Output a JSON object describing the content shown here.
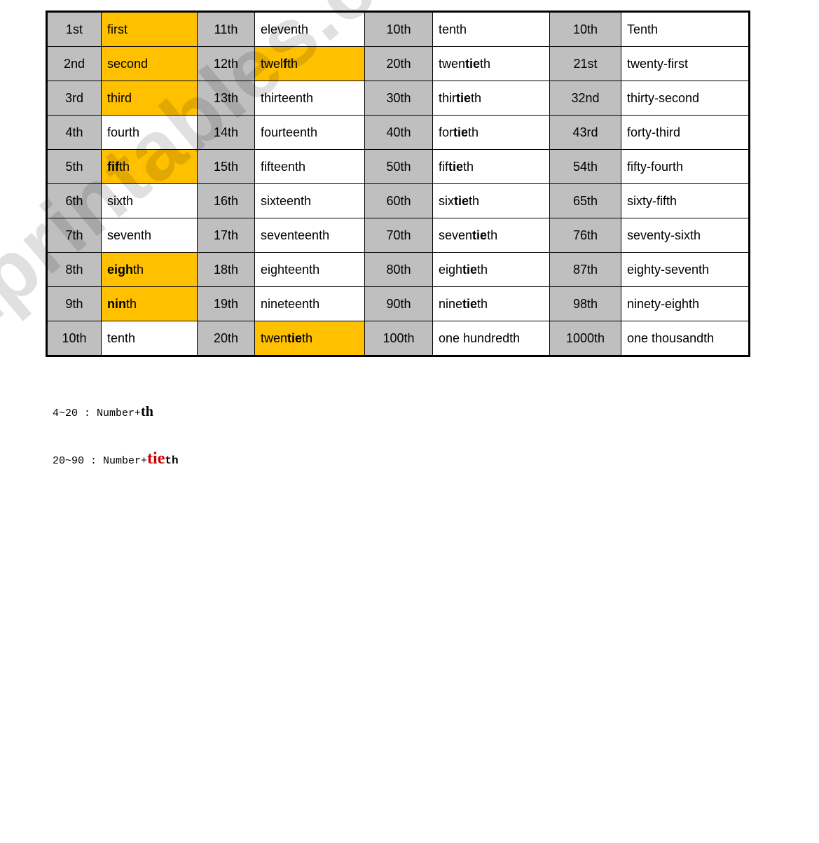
{
  "rows": [
    {
      "n1": "1st",
      "w1": "first",
      "y1": true,
      "b1": false,
      "n2": "11th",
      "w2": "eleventh",
      "y2": false,
      "b2": false,
      "n3": "10th",
      "w3": "tenth",
      "tie3": false,
      "n4": "10th",
      "w4": "Tenth"
    },
    {
      "n1": "2nd",
      "w1": "second",
      "y1": true,
      "b1": false,
      "n2": "12th",
      "w2_pre": "twel",
      "w2_bold": "f",
      "w2_post": "th",
      "y2": true,
      "b2": true,
      "n3": "20th",
      "w3_pre": "twen",
      "w3_tie": "tie",
      "w3_post": "th",
      "tie3": true,
      "n4": "21st",
      "w4": "twenty-first"
    },
    {
      "n1": "3rd",
      "w1": "third",
      "y1": true,
      "b1": false,
      "n2": "13th",
      "w2": "thirteenth",
      "y2": false,
      "b2": false,
      "n3": "30th",
      "w3_pre": "thir",
      "w3_tie": "tie",
      "w3_post": "th",
      "tie3": true,
      "n4": "32nd",
      "w4": "thirty-second"
    },
    {
      "n1": "4th",
      "w1": "fourth",
      "y1": false,
      "b1": false,
      "n2": "14th",
      "w2": "fourteenth",
      "y2": false,
      "b2": false,
      "n3": "40th",
      "w3_pre": "for",
      "w3_tie": "tie",
      "w3_post": "th",
      "tie3": true,
      "n4": "43rd",
      "w4": "forty-third"
    },
    {
      "n1": "5th",
      "w1_pre": "",
      "w1_bold": "fif",
      "w1_post": "th",
      "y1": true,
      "b1": true,
      "n2": "15th",
      "w2": "fifteenth",
      "y2": false,
      "b2": false,
      "n3": "50th",
      "w3_pre": "fif",
      "w3_tie": "tie",
      "w3_post": "th",
      "tie3": true,
      "n4": "54th",
      "w4": "fifty-fourth"
    },
    {
      "n1": "6th",
      "w1": "sixth",
      "y1": false,
      "b1": false,
      "n2": "16th",
      "w2": "sixteenth",
      "y2": false,
      "b2": false,
      "n3": "60th",
      "w3_pre": "six",
      "w3_tie": "tie",
      "w3_post": "th",
      "tie3": true,
      "n4": "65th",
      "w4": "sixty-fifth"
    },
    {
      "n1": "7th",
      "w1": "seventh",
      "y1": false,
      "b1": false,
      "n2": "17th",
      "w2": "seventeenth",
      "y2": false,
      "b2": false,
      "n3": "70th",
      "w3_pre": "seven",
      "w3_tie": "tie",
      "w3_post": "th",
      "tie3": true,
      "n4": "76th",
      "w4": "seventy-sixth"
    },
    {
      "n1": "8th",
      "w1_pre": "",
      "w1_bold": "eigh",
      "w1_post": "th",
      "y1": true,
      "b1": true,
      "n2": "18th",
      "w2": "eighteenth",
      "y2": false,
      "b2": false,
      "n3": "80th",
      "w3_pre": "eigh",
      "w3_tie": "tie",
      "w3_post": "th",
      "tie3": true,
      "n4": "87th",
      "w4": "eighty-seventh"
    },
    {
      "n1": "9th",
      "w1_pre": "",
      "w1_bold": "nin",
      "w1_post": "th",
      "y1": true,
      "b1": true,
      "n2": "19th",
      "w2": "nineteenth",
      "y2": false,
      "b2": false,
      "n3": "90th",
      "w3_pre": "nine",
      "w3_tie": "tie",
      "w3_post": "th",
      "tie3": true,
      "n4": "98th",
      "w4": "ninety-eighth"
    },
    {
      "n1": "10th",
      "w1": "tenth",
      "y1": false,
      "b1": false,
      "n2": "20th",
      "w2_pre": "twen",
      "w2_bold": "tie",
      "w2_post": "th",
      "y2": true,
      "b2": true,
      "n3": "100th",
      "w3": "one hundredth",
      "tie3": false,
      "n4": "1000th",
      "w4": "one thousandth"
    }
  ],
  "notes": {
    "line1_range": "4~20",
    "line1_sep": "   :   ",
    "line1_label": "Number+",
    "line1_suffix": "th",
    "line2_range": "20~90",
    "line2_sep": "  :   ",
    "line2_label": "Number+",
    "line2_tie": "tie",
    "line2_th": "th"
  },
  "watermark": "ESLprintables.com",
  "colors": {
    "gray": "#bfbfbf",
    "yellow": "#ffc000",
    "red": "#cc0000",
    "black": "#000000",
    "white": "#ffffff"
  }
}
